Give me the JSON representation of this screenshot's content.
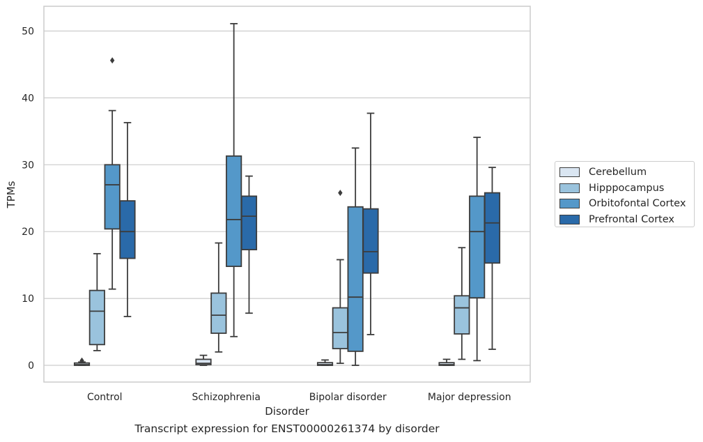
{
  "caption": "Transcript expression for ENST00000261374 by disorder",
  "chart_data": {
    "type": "box",
    "title": "",
    "xlabel": "Disorder",
    "ylabel": "TPMs",
    "ylim": [
      -2.5,
      53.7
    ],
    "yticks": [
      0,
      10,
      20,
      30,
      40,
      50
    ],
    "categories": [
      "Control",
      "Schizophrenia",
      "Bipolar disorder",
      "Major depression"
    ],
    "grid": "horizontal",
    "legend_position": "right",
    "series": [
      {
        "name": "Cerebellum",
        "color": "#dae6f2",
        "boxes": [
          {
            "whislo": 0.0,
            "q1": 0.0,
            "med": 0.1,
            "q3": 0.35,
            "whishi": 0.5,
            "fliers": [
              0.7
            ]
          },
          {
            "whislo": 0.0,
            "q1": 0.1,
            "med": 0.3,
            "q3": 0.9,
            "whishi": 1.5,
            "fliers": []
          },
          {
            "whislo": 0.0,
            "q1": 0.0,
            "med": 0.1,
            "q3": 0.4,
            "whishi": 0.8,
            "fliers": []
          },
          {
            "whislo": 0.0,
            "q1": 0.0,
            "med": 0.1,
            "q3": 0.4,
            "whishi": 0.9,
            "fliers": []
          }
        ]
      },
      {
        "name": "Hipppocampus",
        "color": "#9ac3dd",
        "boxes": [
          {
            "whislo": 2.2,
            "q1": 3.1,
            "med": 8.1,
            "q3": 11.2,
            "whishi": 16.7,
            "fliers": []
          },
          {
            "whislo": 2.0,
            "q1": 4.8,
            "med": 7.5,
            "q3": 10.8,
            "whishi": 18.3,
            "fliers": []
          },
          {
            "whislo": 0.3,
            "q1": 2.5,
            "med": 4.9,
            "q3": 8.6,
            "whishi": 15.8,
            "fliers": [
              25.8
            ]
          },
          {
            "whislo": 0.9,
            "q1": 4.7,
            "med": 8.6,
            "q3": 10.4,
            "whishi": 17.6,
            "fliers": []
          }
        ]
      },
      {
        "name": "Orbitofontal Cortex",
        "color": "#5498c9",
        "boxes": [
          {
            "whislo": 11.4,
            "q1": 20.4,
            "med": 27.0,
            "q3": 30.0,
            "whishi": 38.1,
            "fliers": [
              45.6
            ]
          },
          {
            "whislo": 4.3,
            "q1": 14.8,
            "med": 21.8,
            "q3": 31.3,
            "whishi": 51.1,
            "fliers": []
          },
          {
            "whislo": 0.0,
            "q1": 2.1,
            "med": 10.2,
            "q3": 23.7,
            "whishi": 32.5,
            "fliers": []
          },
          {
            "whislo": 0.7,
            "q1": 10.1,
            "med": 20.0,
            "q3": 25.3,
            "whishi": 34.1,
            "fliers": []
          }
        ]
      },
      {
        "name": "Prefrontal Cortex",
        "color": "#2a6aa9",
        "boxes": [
          {
            "whislo": 7.3,
            "q1": 16.0,
            "med": 20.0,
            "q3": 24.6,
            "whishi": 36.3,
            "fliers": []
          },
          {
            "whislo": 7.8,
            "q1": 17.3,
            "med": 22.3,
            "q3": 25.3,
            "whishi": 28.3,
            "fliers": []
          },
          {
            "whislo": 4.6,
            "q1": 13.8,
            "med": 17.0,
            "q3": 23.4,
            "whishi": 37.7,
            "fliers": []
          },
          {
            "whislo": 2.4,
            "q1": 15.3,
            "med": 21.3,
            "q3": 25.8,
            "whishi": 29.6,
            "fliers": []
          }
        ]
      }
    ]
  }
}
